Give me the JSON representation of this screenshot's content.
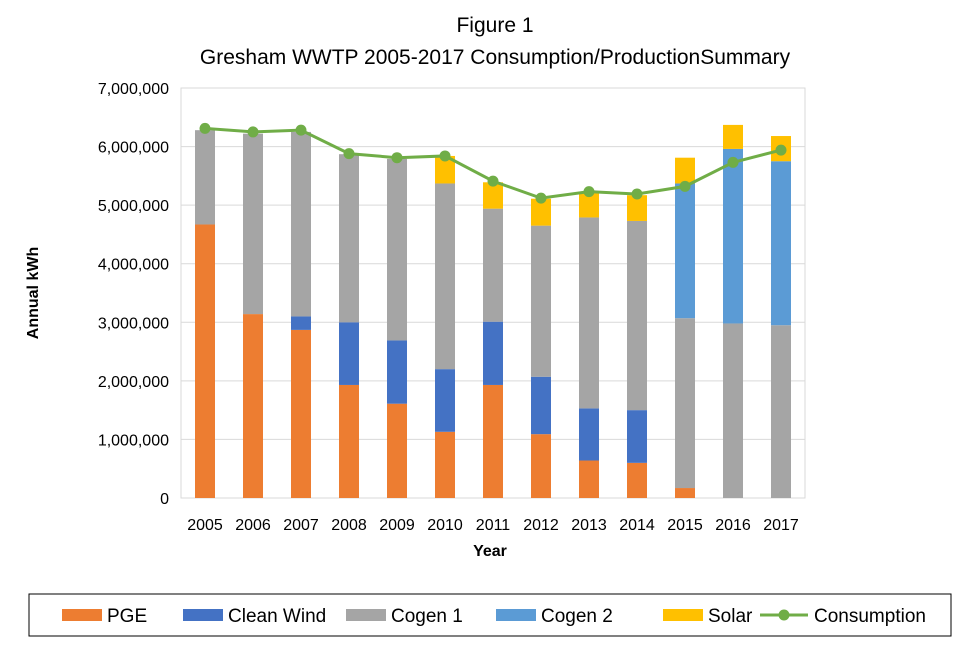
{
  "chart_data": {
    "type": "bar",
    "stacked": true,
    "title": "Figure 1",
    "subtitle": "Gresham WWTP 2005-2017 Consumption/ProductionSummary",
    "xlabel": "Year",
    "ylabel": "Annual kWh",
    "ylim": [
      0,
      7000000
    ],
    "yticks": [
      0,
      1000000,
      2000000,
      3000000,
      4000000,
      5000000,
      6000000,
      7000000
    ],
    "ytick_labels": [
      "0",
      "1,000,000",
      "2,000,000",
      "3,000,000",
      "4,000,000",
      "5,000,000",
      "6,000,000",
      "7,000,000"
    ],
    "grid": "horizontal",
    "legend_position": "bottom",
    "categories": [
      "2005",
      "2006",
      "2007",
      "2008",
      "2009",
      "2010",
      "2011",
      "2012",
      "2013",
      "2014",
      "2015",
      "2016",
      "2017"
    ],
    "series": [
      {
        "name": "PGE",
        "kind": "bar",
        "color": "#ED7D31",
        "values": [
          4670000,
          3140000,
          2870000,
          1930000,
          1610000,
          1130000,
          1930000,
          1090000,
          640000,
          600000,
          170000,
          0,
          0
        ]
      },
      {
        "name": "Clean Wind",
        "kind": "bar",
        "color": "#4472C4",
        "values": [
          0,
          0,
          230000,
          1070000,
          1080000,
          1070000,
          1080000,
          980000,
          890000,
          900000,
          0,
          0,
          0
        ]
      },
      {
        "name": "Cogen 1",
        "kind": "bar",
        "color": "#A5A5A5",
        "values": [
          1610000,
          3080000,
          3150000,
          2870000,
          3100000,
          3170000,
          1930000,
          2580000,
          3260000,
          3230000,
          2900000,
          2980000,
          2950000
        ]
      },
      {
        "name": "Cogen 2",
        "kind": "bar",
        "color": "#5B9BD5",
        "values": [
          0,
          0,
          0,
          0,
          0,
          0,
          0,
          0,
          0,
          0,
          2300000,
          2980000,
          2800000
        ]
      },
      {
        "name": "Solar",
        "kind": "bar",
        "color": "#FFC000",
        "values": [
          0,
          0,
          0,
          0,
          0,
          470000,
          450000,
          460000,
          430000,
          440000,
          440000,
          410000,
          430000
        ]
      },
      {
        "name": "Consumption",
        "kind": "line",
        "color": "#70AD47",
        "values": [
          6310000,
          6250000,
          6280000,
          5880000,
          5810000,
          5840000,
          5410000,
          5120000,
          5230000,
          5190000,
          5320000,
          5730000,
          5940000
        ]
      }
    ]
  }
}
